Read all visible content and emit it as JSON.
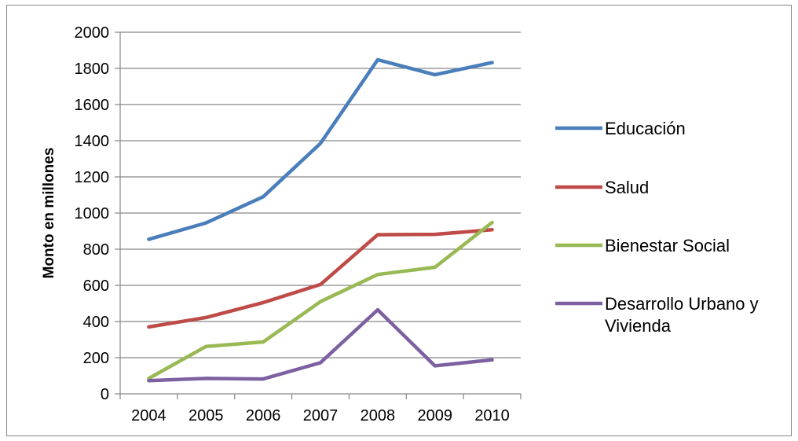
{
  "chart_data": {
    "type": "line",
    "title": "",
    "xlabel": "",
    "ylabel": "Monto en millones",
    "categories": [
      "2004",
      "2005",
      "2006",
      "2007",
      "2008",
      "2009",
      "2010"
    ],
    "yticks": [
      "0",
      "200",
      "400",
      "600",
      "800",
      "1000",
      "1200",
      "1400",
      "1600",
      "1800",
      "2000"
    ],
    "ylim": [
      0,
      2000
    ],
    "grid": true,
    "legend_position": "right",
    "series": [
      {
        "name": "Educación",
        "color": "#4a7ebb",
        "values": [
          855,
          945,
          1090,
          1385,
          1848,
          1765,
          1832
        ]
      },
      {
        "name": "Salud",
        "color": "#be4b48",
        "values": [
          370,
          422,
          505,
          605,
          880,
          882,
          908
        ]
      },
      {
        "name": "Bienestar Social",
        "color": "#98b954",
        "values": [
          85,
          262,
          287,
          510,
          660,
          700,
          948
        ]
      },
      {
        "name": "Desarrollo Urbano y Vivienda",
        "name_lines": [
          "Desarrollo Urbano y",
          "Vivienda"
        ],
        "color": "#7d60a0",
        "values": [
          73,
          85,
          82,
          172,
          465,
          155,
          188
        ]
      }
    ]
  }
}
